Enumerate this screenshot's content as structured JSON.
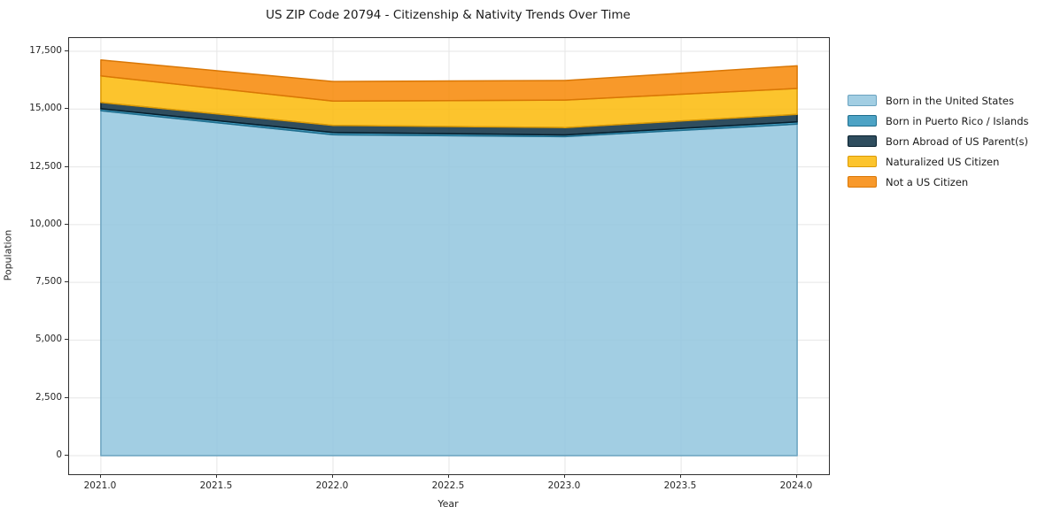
{
  "chart": {
    "title": "US ZIP Code 20794 - Citizenship & Nativity Trends Over Time",
    "xlabel": "Year",
    "ylabel": "Population"
  },
  "chart_data": {
    "type": "area",
    "stacked": true,
    "title": "US ZIP Code 20794 - Citizenship & Nativity Trends Over Time",
    "xlabel": "Year",
    "ylabel": "Population",
    "x": [
      2021,
      2022,
      2023,
      2024
    ],
    "series": [
      {
        "name": "Born in the United States",
        "values": [
          14930,
          13890,
          13810,
          14350
        ],
        "color": "#92C5DE",
        "edge": "#6BA3C0"
      },
      {
        "name": "Born in Puerto Rico / Islands",
        "values": [
          85,
          95,
          70,
          95
        ],
        "color": "#2E93BB",
        "edge": "#1F6E8E"
      },
      {
        "name": "Born Abroad of US Parent(s)",
        "values": [
          270,
          310,
          320,
          325
        ],
        "color": "#0A2E42",
        "edge": "#071F2D"
      },
      {
        "name": "Naturalized US Citizen",
        "values": [
          1150,
          1050,
          1190,
          1120
        ],
        "color": "#FBBA08",
        "edge": "#DB9A06"
      },
      {
        "name": "Not a US Citizen",
        "values": [
          690,
          850,
          845,
          980
        ],
        "color": "#F78705",
        "edge": "#D97706"
      }
    ],
    "fill_opacity": 0.85,
    "x_ticks": [
      "2021.0",
      "2021.5",
      "2022.0",
      "2022.5",
      "2023.0",
      "2023.5",
      "2024.0"
    ],
    "x_tick_values": [
      2021,
      2021.5,
      2022,
      2022.5,
      2023,
      2023.5,
      2024
    ],
    "y_ticks": [
      "0",
      "2,500",
      "5,000",
      "7,500",
      "10,000",
      "12,500",
      "15,000",
      "17,500"
    ],
    "y_tick_values": [
      0,
      2500,
      5000,
      7500,
      10000,
      12500,
      15000,
      17500
    ],
    "xlim": [
      2020.863,
      2024.137
    ],
    "ylim": [
      -804,
      18074
    ],
    "grid": true,
    "legend_position": "right-outside"
  },
  "colors": {
    "grid": "#e6e6e6",
    "spine": "#2f2f2f",
    "text": "#1a1a1a",
    "background": "#ffffff"
  }
}
